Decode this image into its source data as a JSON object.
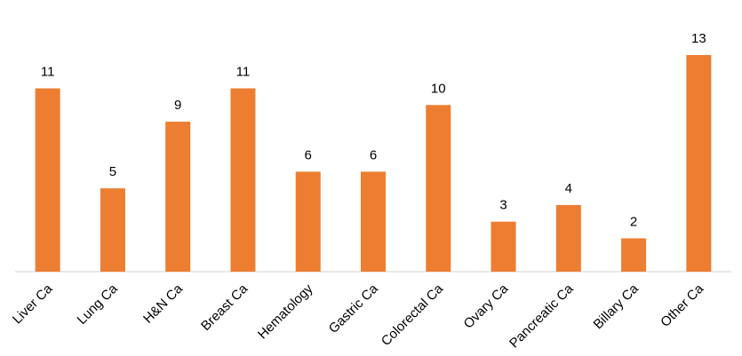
{
  "chart_data": {
    "type": "bar",
    "categories": [
      "Liver Ca",
      "Lung Ca",
      "H&N Ca",
      "Breast Ca",
      "Hematology",
      "Gastric Ca",
      "Colorectal Ca",
      "Ovary Ca",
      "Pancreatic Ca",
      "Billary Ca",
      "Other Ca"
    ],
    "values": [
      11,
      5,
      9,
      11,
      6,
      6,
      10,
      3,
      4,
      2,
      13
    ],
    "color": "#ed7d31"
  }
}
